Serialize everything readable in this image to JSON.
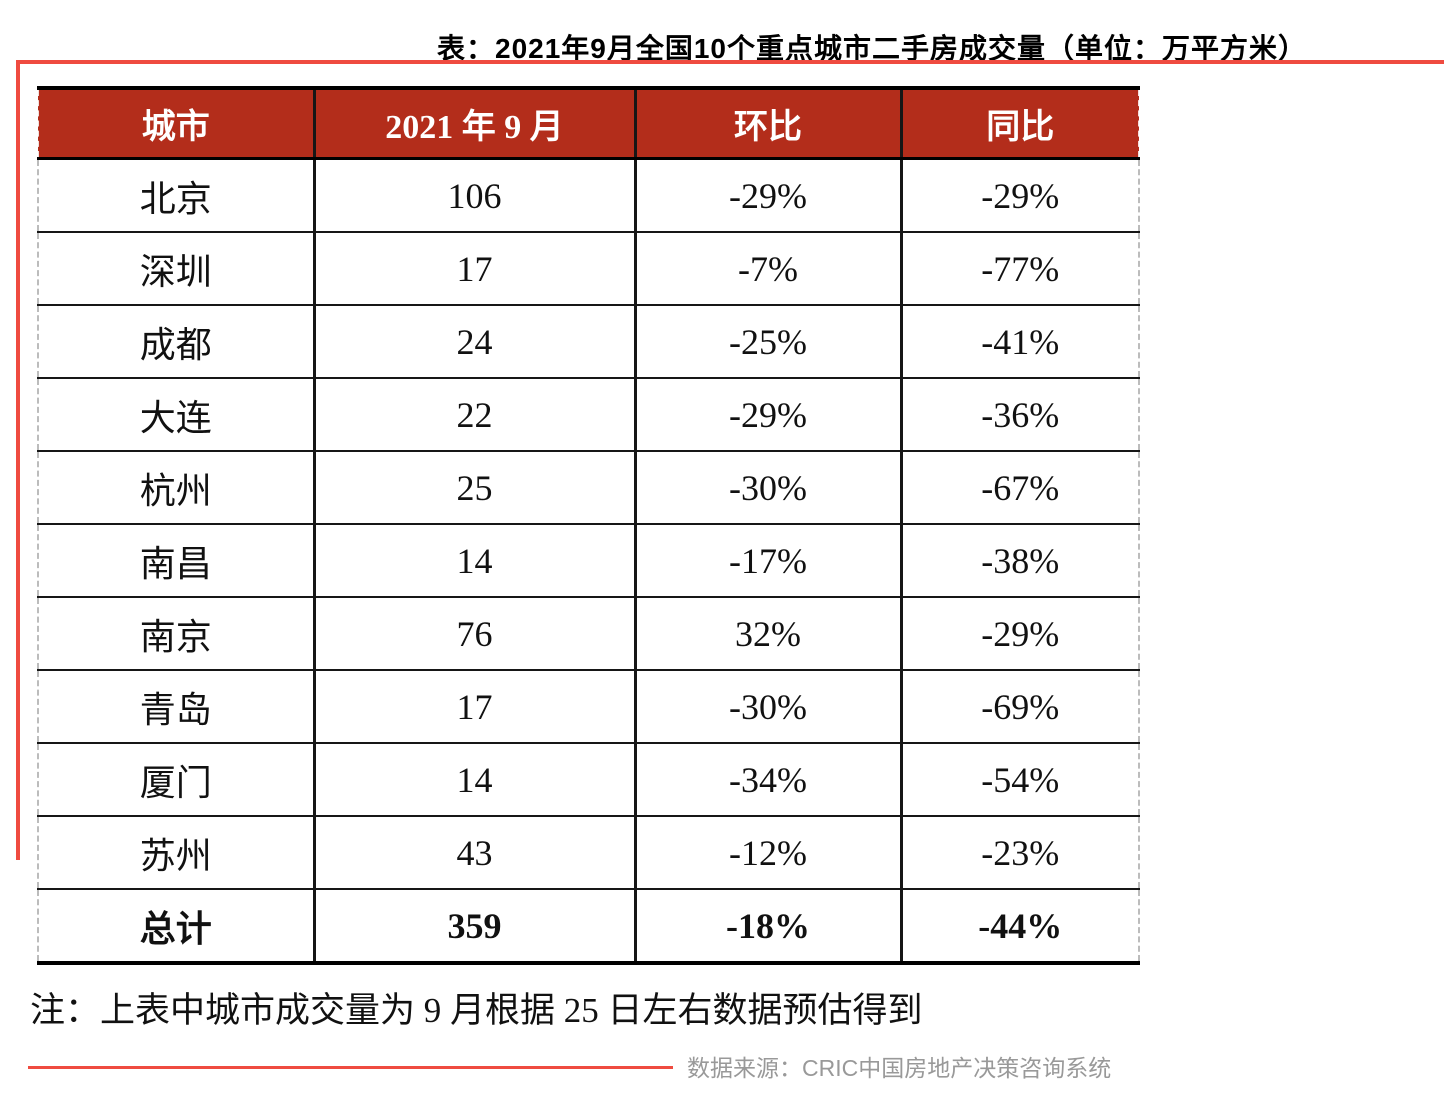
{
  "title": "表：2021年9月全国10个重点城市二手房成交量（单位：万平方米）",
  "table": {
    "columns": [
      "城市",
      "2021 年 9 月",
      "环比",
      "同比"
    ],
    "rows": [
      {
        "city": "北京",
        "volume": "106",
        "mom": "-29%",
        "yoy": "-29%"
      },
      {
        "city": "深圳",
        "volume": "17",
        "mom": "-7%",
        "yoy": "-77%"
      },
      {
        "city": "成都",
        "volume": "24",
        "mom": "-25%",
        "yoy": "-41%"
      },
      {
        "city": "大连",
        "volume": "22",
        "mom": "-29%",
        "yoy": "-36%"
      },
      {
        "city": "杭州",
        "volume": "25",
        "mom": "-30%",
        "yoy": "-67%"
      },
      {
        "city": "南昌",
        "volume": "14",
        "mom": "-17%",
        "yoy": "-38%"
      },
      {
        "city": "南京",
        "volume": "76",
        "mom": "32%",
        "yoy": "-29%"
      },
      {
        "city": "青岛",
        "volume": "17",
        "mom": "-30%",
        "yoy": "-69%"
      },
      {
        "city": "厦门",
        "volume": "14",
        "mom": "-34%",
        "yoy": "-54%"
      },
      {
        "city": "苏州",
        "volume": "43",
        "mom": "-12%",
        "yoy": "-23%"
      },
      {
        "city": "总计",
        "volume": "359",
        "mom": "-18%",
        "yoy": "-44%",
        "is_total": true
      }
    ]
  },
  "note": "注：上表中城市成交量为 9 月根据 25 日左右数据预估得到",
  "source": "数据来源：CRIC中国房地产决策咨询系统",
  "colors": {
    "header_bg": "#B32D1B",
    "accent_line": "#EF4B40",
    "source_text": "#999999"
  },
  "chart_data": {
    "type": "table",
    "title": "表：2021年9月全国10个重点城市二手房成交量（单位：万平方米）",
    "columns": [
      "城市",
      "2021 年 9 月",
      "环比",
      "同比"
    ],
    "cities": [
      "北京",
      "深圳",
      "成都",
      "大连",
      "杭州",
      "南昌",
      "南京",
      "青岛",
      "厦门",
      "苏州",
      "总计"
    ],
    "volume_wan_sqm": [
      106,
      17,
      24,
      22,
      25,
      14,
      76,
      17,
      14,
      43,
      359
    ],
    "mom_pct": [
      -29,
      -7,
      -25,
      -29,
      -30,
      -17,
      32,
      -30,
      -34,
      -12,
      -18
    ],
    "yoy_pct": [
      -29,
      -77,
      -41,
      -36,
      -67,
      -38,
      -29,
      -69,
      -54,
      -23,
      -44
    ]
  }
}
